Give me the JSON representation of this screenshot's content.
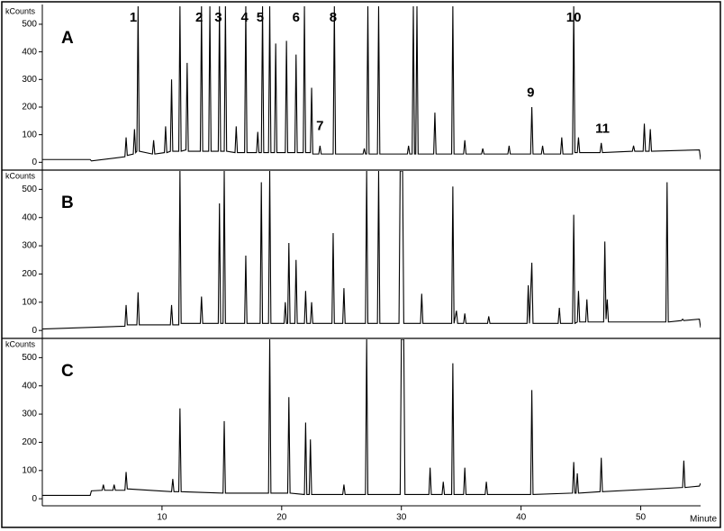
{
  "chart_data": [
    {
      "type": "line",
      "title": "A",
      "ylabel": "kCounts",
      "color": "#000000",
      "xlim": [
        0,
        55
      ],
      "ylim": [
        -25,
        565
      ],
      "yticks": [
        0,
        100,
        200,
        300,
        400,
        500
      ],
      "x": [
        0,
        4.0,
        4.1,
        6.9,
        7.0,
        7.1,
        7.6,
        7.7,
        7.8,
        7.9,
        8.0,
        8.1,
        9.2,
        9.3,
        9.4,
        10.2,
        10.3,
        10.4,
        10.7,
        10.8,
        10.9,
        11.4,
        11.5,
        11.6,
        12.0,
        12.1,
        12.2,
        13.2,
        13.3,
        13.4,
        13.9,
        14.0,
        14.1,
        14.7,
        14.8,
        14.9,
        15.2,
        15.3,
        15.4,
        16.1,
        16.2,
        16.3,
        16.9,
        17.0,
        17.1,
        17.9,
        18.0,
        18.1,
        18.3,
        18.4,
        18.5,
        18.9,
        19.0,
        19.1,
        19.4,
        19.5,
        19.6,
        20.3,
        20.4,
        20.5,
        21.1,
        21.2,
        21.3,
        21.8,
        21.9,
        22.0,
        22.4,
        22.5,
        22.6,
        23.1,
        23.2,
        23.3,
        24.3,
        24.4,
        24.5,
        26.8,
        26.9,
        27.0,
        27.1,
        27.2,
        27.3,
        28.0,
        28.1,
        28.2,
        30.5,
        30.6,
        30.7,
        30.9,
        31.0,
        31.1,
        31.2,
        31.3,
        31.4,
        32.7,
        32.8,
        32.9,
        34.2,
        34.3,
        34.4,
        35.2,
        35.3,
        35.4,
        36.7,
        36.8,
        36.9,
        38.9,
        39.0,
        39.1,
        40.8,
        40.9,
        41.0,
        41.7,
        41.8,
        41.9,
        43.3,
        43.4,
        43.5,
        44.3,
        44.4,
        44.5,
        44.7,
        44.8,
        44.9,
        46.6,
        46.7,
        46.8,
        49.3,
        49.4,
        49.5,
        50.2,
        50.3,
        50.4,
        50.7,
        50.8,
        50.9,
        54.9,
        55.0
      ],
      "values": [
        10,
        10,
        5,
        20,
        90,
        25,
        30,
        120,
        35,
        40,
        565,
        40,
        30,
        80,
        30,
        35,
        130,
        35,
        40,
        300,
        40,
        40,
        565,
        40,
        45,
        360,
        40,
        40,
        565,
        40,
        40,
        565,
        40,
        40,
        565,
        40,
        40,
        565,
        40,
        35,
        130,
        35,
        35,
        565,
        35,
        35,
        110,
        35,
        35,
        565,
        35,
        35,
        565,
        35,
        35,
        430,
        35,
        35,
        440,
        35,
        35,
        390,
        35,
        35,
        565,
        35,
        35,
        270,
        30,
        30,
        60,
        30,
        30,
        565,
        30,
        30,
        50,
        30,
        30,
        565,
        30,
        30,
        565,
        30,
        30,
        60,
        30,
        30,
        565,
        30,
        30,
        565,
        30,
        30,
        180,
        30,
        30,
        565,
        30,
        30,
        80,
        30,
        30,
        50,
        30,
        30,
        60,
        30,
        30,
        200,
        30,
        30,
        60,
        30,
        30,
        90,
        30,
        30,
        565,
        35,
        35,
        90,
        35,
        35,
        70,
        35,
        40,
        60,
        40,
        40,
        140,
        40,
        40,
        120,
        40,
        45,
        10
      ],
      "annotations": [
        {
          "text": "1",
          "x": 7.6,
          "y": 523
        },
        {
          "text": "2",
          "x": 13.1,
          "y": 523
        },
        {
          "text": "3",
          "x": 14.7,
          "y": 523
        },
        {
          "text": "4",
          "x": 16.9,
          "y": 523
        },
        {
          "text": "5",
          "x": 18.2,
          "y": 523
        },
        {
          "text": "6",
          "x": 21.2,
          "y": 523
        },
        {
          "text": "7",
          "x": 23.2,
          "y": 130
        },
        {
          "text": "8",
          "x": 24.3,
          "y": 523
        },
        {
          "text": "9",
          "x": 40.8,
          "y": 250
        },
        {
          "text": "10",
          "x": 44.4,
          "y": 523
        },
        {
          "text": "11",
          "x": 46.8,
          "y": 120
        }
      ]
    },
    {
      "type": "line",
      "title": "B",
      "ylabel": "kCounts",
      "color": "#000000",
      "xlim": [
        0,
        55
      ],
      "ylim": [
        -25,
        565
      ],
      "yticks": [
        0,
        100,
        200,
        300,
        400,
        500
      ],
      "x": [
        0,
        6.9,
        7.0,
        7.1,
        7.9,
        8.0,
        8.1,
        10.7,
        10.8,
        10.9,
        11.4,
        11.5,
        11.6,
        13.2,
        13.3,
        13.4,
        14.7,
        14.8,
        14.9,
        15.1,
        15.2,
        15.3,
        16.9,
        17.0,
        17.1,
        18.2,
        18.3,
        18.4,
        18.9,
        19.0,
        19.1,
        20.2,
        20.3,
        20.4,
        20.5,
        20.6,
        20.7,
        21.1,
        21.2,
        21.3,
        21.9,
        22.0,
        22.1,
        22.4,
        22.5,
        22.6,
        24.2,
        24.3,
        24.4,
        25.1,
        25.2,
        25.3,
        27.0,
        27.1,
        27.2,
        28.0,
        28.1,
        28.2,
        29.8,
        29.9,
        30.0,
        30.1,
        30.2,
        31.6,
        31.7,
        31.8,
        34.2,
        34.3,
        34.4,
        34.6,
        34.7,
        35.2,
        35.3,
        35.4,
        37.2,
        37.3,
        37.4,
        40.5,
        40.6,
        40.7,
        40.9,
        41.0,
        43.1,
        43.2,
        43.3,
        44.3,
        44.4,
        44.5,
        44.7,
        44.8,
        44.9,
        45.4,
        45.5,
        45.6,
        46.9,
        47.0,
        47.1,
        47.2,
        47.3,
        52.1,
        52.2,
        52.3,
        53.4,
        53.5,
        53.6,
        54.9,
        55.0
      ],
      "values": [
        5,
        15,
        90,
        20,
        20,
        135,
        20,
        20,
        90,
        20,
        20,
        565,
        25,
        25,
        120,
        25,
        25,
        450,
        25,
        25,
        565,
        25,
        25,
        265,
        25,
        25,
        525,
        25,
        25,
        565,
        25,
        25,
        100,
        25,
        25,
        310,
        25,
        25,
        250,
        25,
        25,
        140,
        25,
        25,
        100,
        25,
        25,
        345,
        25,
        25,
        150,
        25,
        25,
        565,
        25,
        25,
        565,
        25,
        25,
        565,
        565,
        565,
        25,
        25,
        130,
        25,
        25,
        510,
        25,
        70,
        25,
        25,
        60,
        25,
        25,
        50,
        25,
        25,
        160,
        25,
        240,
        25,
        25,
        80,
        25,
        25,
        410,
        25,
        30,
        140,
        30,
        30,
        110,
        30,
        30,
        315,
        40,
        110,
        30,
        30,
        525,
        30,
        35,
        40,
        35,
        40,
        10
      ]
    },
    {
      "type": "line",
      "title": "C",
      "ylabel": "kCounts",
      "xlabel": "Minute",
      "color": "#000000",
      "xlim": [
        0,
        55
      ],
      "ylim": [
        -25,
        565
      ],
      "yticks": [
        0,
        100,
        200,
        300,
        400,
        500
      ],
      "xticks": [
        10,
        20,
        30,
        40,
        50
      ],
      "x": [
        0,
        4.0,
        4.1,
        5.0,
        5.1,
        5.2,
        5.9,
        6.0,
        6.1,
        6.9,
        7.0,
        7.1,
        10.8,
        10.9,
        11.0,
        11.4,
        11.5,
        11.6,
        15.1,
        15.2,
        15.3,
        18.9,
        19.0,
        19.1,
        20.5,
        20.6,
        20.7,
        21.9,
        22.0,
        22.1,
        22.3,
        22.4,
        22.5,
        25.1,
        25.2,
        25.3,
        27.0,
        27.1,
        27.2,
        29.9,
        30.0,
        30.2,
        30.3,
        32.3,
        32.4,
        32.5,
        33.4,
        33.5,
        33.6,
        34.2,
        34.3,
        34.4,
        35.2,
        35.3,
        35.4,
        37.0,
        37.1,
        37.2,
        40.8,
        40.9,
        41.0,
        44.3,
        44.4,
        44.5,
        44.6,
        44.7,
        44.8,
        46.6,
        46.7,
        46.8,
        53.5,
        53.6,
        53.7,
        54.9,
        55.0
      ],
      "values": [
        12,
        12,
        28,
        30,
        50,
        30,
        30,
        50,
        30,
        30,
        95,
        35,
        25,
        70,
        25,
        25,
        320,
        25,
        20,
        275,
        20,
        20,
        565,
        20,
        20,
        360,
        20,
        15,
        270,
        15,
        15,
        210,
        15,
        15,
        50,
        15,
        15,
        565,
        15,
        15,
        565,
        565,
        15,
        15,
        110,
        15,
        15,
        60,
        15,
        15,
        480,
        15,
        15,
        110,
        15,
        15,
        60,
        15,
        15,
        385,
        15,
        20,
        130,
        20,
        20,
        90,
        20,
        25,
        145,
        25,
        40,
        135,
        40,
        45,
        55
      ]
    }
  ]
}
